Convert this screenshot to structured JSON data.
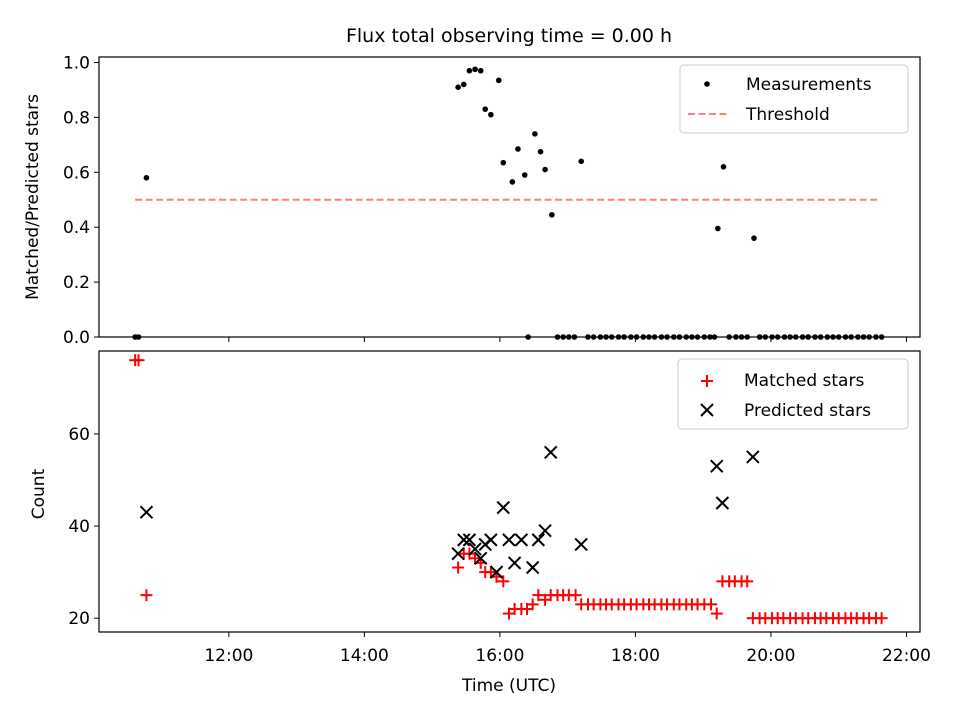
{
  "chart_data": [
    {
      "type": "scatter",
      "title": "Flux total observing time = 0.00 h",
      "xlabel": "",
      "ylabel": "Matched/Predicted stars",
      "xlim": [
        "10:05",
        "22:12"
      ],
      "ylim": [
        0,
        1.02
      ],
      "yticks": [
        0.0,
        0.2,
        0.4,
        0.6,
        0.8,
        1.0
      ],
      "ytick_labels": [
        "0.0",
        "0.2",
        "0.4",
        "0.6",
        "0.8",
        "1.0"
      ],
      "legend_position": "top-right",
      "legend": [
        "Measurements",
        "Threshold"
      ],
      "series": [
        {
          "name": "Measurements",
          "marker": "dot",
          "color": "#000000",
          "points": [
            [
              "10:37",
              0.0
            ],
            [
              "10:40",
              0.0
            ],
            [
              "10:47",
              0.58
            ],
            [
              "15:23",
              0.91
            ],
            [
              "15:28",
              0.92
            ],
            [
              "15:33",
              0.97
            ],
            [
              "15:38",
              0.975
            ],
            [
              "15:43",
              0.97
            ],
            [
              "15:47",
              0.83
            ],
            [
              "15:52",
              0.81
            ],
            [
              "15:59",
              0.935
            ],
            [
              "16:03",
              0.635
            ],
            [
              "16:11",
              0.565
            ],
            [
              "16:16",
              0.685
            ],
            [
              "16:22",
              0.59
            ],
            [
              "16:25",
              0.0
            ],
            [
              "16:31",
              0.74
            ],
            [
              "16:36",
              0.675
            ],
            [
              "16:40",
              0.61
            ],
            [
              "16:46",
              0.445
            ],
            [
              "16:51",
              0.0
            ],
            [
              "16:56",
              0.0
            ],
            [
              "17:01",
              0.0
            ],
            [
              "17:06",
              0.0
            ],
            [
              "17:12",
              0.64
            ],
            [
              "17:18",
              0.0
            ],
            [
              "17:23",
              0.0
            ],
            [
              "17:29",
              0.0
            ],
            [
              "17:34",
              0.0
            ],
            [
              "17:39",
              0.0
            ],
            [
              "17:45",
              0.0
            ],
            [
              "17:50",
              0.0
            ],
            [
              "17:56",
              0.0
            ],
            [
              "18:01",
              0.0
            ],
            [
              "18:07",
              0.0
            ],
            [
              "18:12",
              0.0
            ],
            [
              "18:17",
              0.0
            ],
            [
              "18:23",
              0.0
            ],
            [
              "18:28",
              0.0
            ],
            [
              "18:34",
              0.0
            ],
            [
              "18:39",
              0.0
            ],
            [
              "18:45",
              0.0
            ],
            [
              "18:50",
              0.0
            ],
            [
              "18:55",
              0.0
            ],
            [
              "19:01",
              0.0
            ],
            [
              "19:06",
              0.0
            ],
            [
              "19:10",
              0.0
            ],
            [
              "19:13",
              0.395
            ],
            [
              "19:18",
              0.62
            ],
            [
              "19:23",
              0.0
            ],
            [
              "19:29",
              0.0
            ],
            [
              "19:34",
              0.0
            ],
            [
              "19:39",
              0.0
            ],
            [
              "19:45",
              0.36
            ],
            [
              "19:50",
              0.0
            ],
            [
              "19:55",
              0.0
            ],
            [
              "20:01",
              0.0
            ],
            [
              "20:06",
              0.0
            ],
            [
              "20:12",
              0.0
            ],
            [
              "20:17",
              0.0
            ],
            [
              "20:22",
              0.0
            ],
            [
              "20:28",
              0.0
            ],
            [
              "20:33",
              0.0
            ],
            [
              "20:39",
              0.0
            ],
            [
              "20:44",
              0.0
            ],
            [
              "20:50",
              0.0
            ],
            [
              "20:55",
              0.0
            ],
            [
              "21:00",
              0.0
            ],
            [
              "21:06",
              0.0
            ],
            [
              "21:11",
              0.0
            ],
            [
              "21:17",
              0.0
            ],
            [
              "21:22",
              0.0
            ],
            [
              "21:27",
              0.0
            ],
            [
              "21:33",
              0.0
            ],
            [
              "21:38",
              0.0
            ]
          ]
        },
        {
          "name": "Threshold",
          "marker": "dashed-line",
          "color": "#ff7f7f",
          "points": [
            [
              "10:37",
              0.5
            ],
            [
              "21:35",
              0.5
            ]
          ]
        }
      ]
    },
    {
      "type": "scatter",
      "title": "",
      "xlabel": "Time (UTC)",
      "ylabel": "Count",
      "xlim": [
        "10:05",
        "22:12"
      ],
      "ylim": [
        17,
        78
      ],
      "yticks": [
        20,
        40,
        60
      ],
      "ytick_labels": [
        "20",
        "40",
        "60"
      ],
      "xticks": [
        "12:00",
        "14:00",
        "16:00",
        "18:00",
        "20:00",
        "22:00"
      ],
      "legend_position": "top-right",
      "legend": [
        "Matched stars",
        "Predicted stars"
      ],
      "series": [
        {
          "name": "Matched stars",
          "marker": "plus",
          "color": "#ff0000",
          "points": [
            [
              "10:37",
              76
            ],
            [
              "10:40",
              76
            ],
            [
              "10:47",
              25
            ],
            [
              "15:23",
              31
            ],
            [
              "15:28",
              34
            ],
            [
              "15:33",
              34
            ],
            [
              "15:38",
              33
            ],
            [
              "15:43",
              32
            ],
            [
              "15:47",
              30
            ],
            [
              "15:52",
              30
            ],
            [
              "15:57",
              29
            ],
            [
              "16:03",
              28
            ],
            [
              "16:08",
              21
            ],
            [
              "16:13",
              22
            ],
            [
              "16:19",
              22
            ],
            [
              "16:24",
              22
            ],
            [
              "16:29",
              23
            ],
            [
              "16:34",
              25
            ],
            [
              "16:40",
              24
            ],
            [
              "16:45",
              25
            ],
            [
              "16:51",
              25
            ],
            [
              "16:56",
              25
            ],
            [
              "17:01",
              25
            ],
            [
              "17:07",
              25
            ],
            [
              "17:12",
              23
            ],
            [
              "17:18",
              23
            ],
            [
              "17:23",
              23
            ],
            [
              "17:29",
              23
            ],
            [
              "17:34",
              23
            ],
            [
              "17:39",
              23
            ],
            [
              "17:45",
              23
            ],
            [
              "17:50",
              23
            ],
            [
              "17:56",
              23
            ],
            [
              "18:01",
              23
            ],
            [
              "18:07",
              23
            ],
            [
              "18:12",
              23
            ],
            [
              "18:17",
              23
            ],
            [
              "18:23",
              23
            ],
            [
              "18:28",
              23
            ],
            [
              "18:34",
              23
            ],
            [
              "18:39",
              23
            ],
            [
              "18:45",
              23
            ],
            [
              "18:50",
              23
            ],
            [
              "18:55",
              23
            ],
            [
              "19:01",
              23
            ],
            [
              "19:07",
              23
            ],
            [
              "19:12",
              21
            ],
            [
              "19:17",
              28
            ],
            [
              "19:23",
              28
            ],
            [
              "19:28",
              28
            ],
            [
              "19:34",
              28
            ],
            [
              "19:39",
              28
            ],
            [
              "19:44",
              20
            ],
            [
              "19:50",
              20
            ],
            [
              "19:55",
              20
            ],
            [
              "20:01",
              20
            ],
            [
              "20:06",
              20
            ],
            [
              "20:11",
              20
            ],
            [
              "20:17",
              20
            ],
            [
              "20:22",
              20
            ],
            [
              "20:28",
              20
            ],
            [
              "20:33",
              20
            ],
            [
              "20:39",
              20
            ],
            [
              "20:44",
              20
            ],
            [
              "20:49",
              20
            ],
            [
              "20:55",
              20
            ],
            [
              "21:00",
              20
            ],
            [
              "21:06",
              20
            ],
            [
              "21:11",
              20
            ],
            [
              "21:16",
              20
            ],
            [
              "21:22",
              20
            ],
            [
              "21:27",
              20
            ],
            [
              "21:33",
              20
            ],
            [
              "21:38",
              20
            ]
          ]
        },
        {
          "name": "Predicted stars",
          "marker": "x",
          "color": "#000000",
          "points": [
            [
              "10:47",
              43
            ],
            [
              "15:23",
              34
            ],
            [
              "15:28",
              37
            ],
            [
              "15:33",
              37
            ],
            [
              "15:38",
              35
            ],
            [
              "15:43",
              33
            ],
            [
              "15:47",
              36
            ],
            [
              "15:52",
              37
            ],
            [
              "15:57",
              30
            ],
            [
              "16:03",
              44
            ],
            [
              "16:08",
              37
            ],
            [
              "16:13",
              32
            ],
            [
              "16:19",
              37
            ],
            [
              "16:29",
              31
            ],
            [
              "16:34",
              37
            ],
            [
              "16:40",
              39
            ],
            [
              "16:45",
              56
            ],
            [
              "17:12",
              36
            ],
            [
              "19:12",
              53
            ],
            [
              "19:17",
              45
            ],
            [
              "19:44",
              55
            ]
          ]
        }
      ]
    }
  ]
}
